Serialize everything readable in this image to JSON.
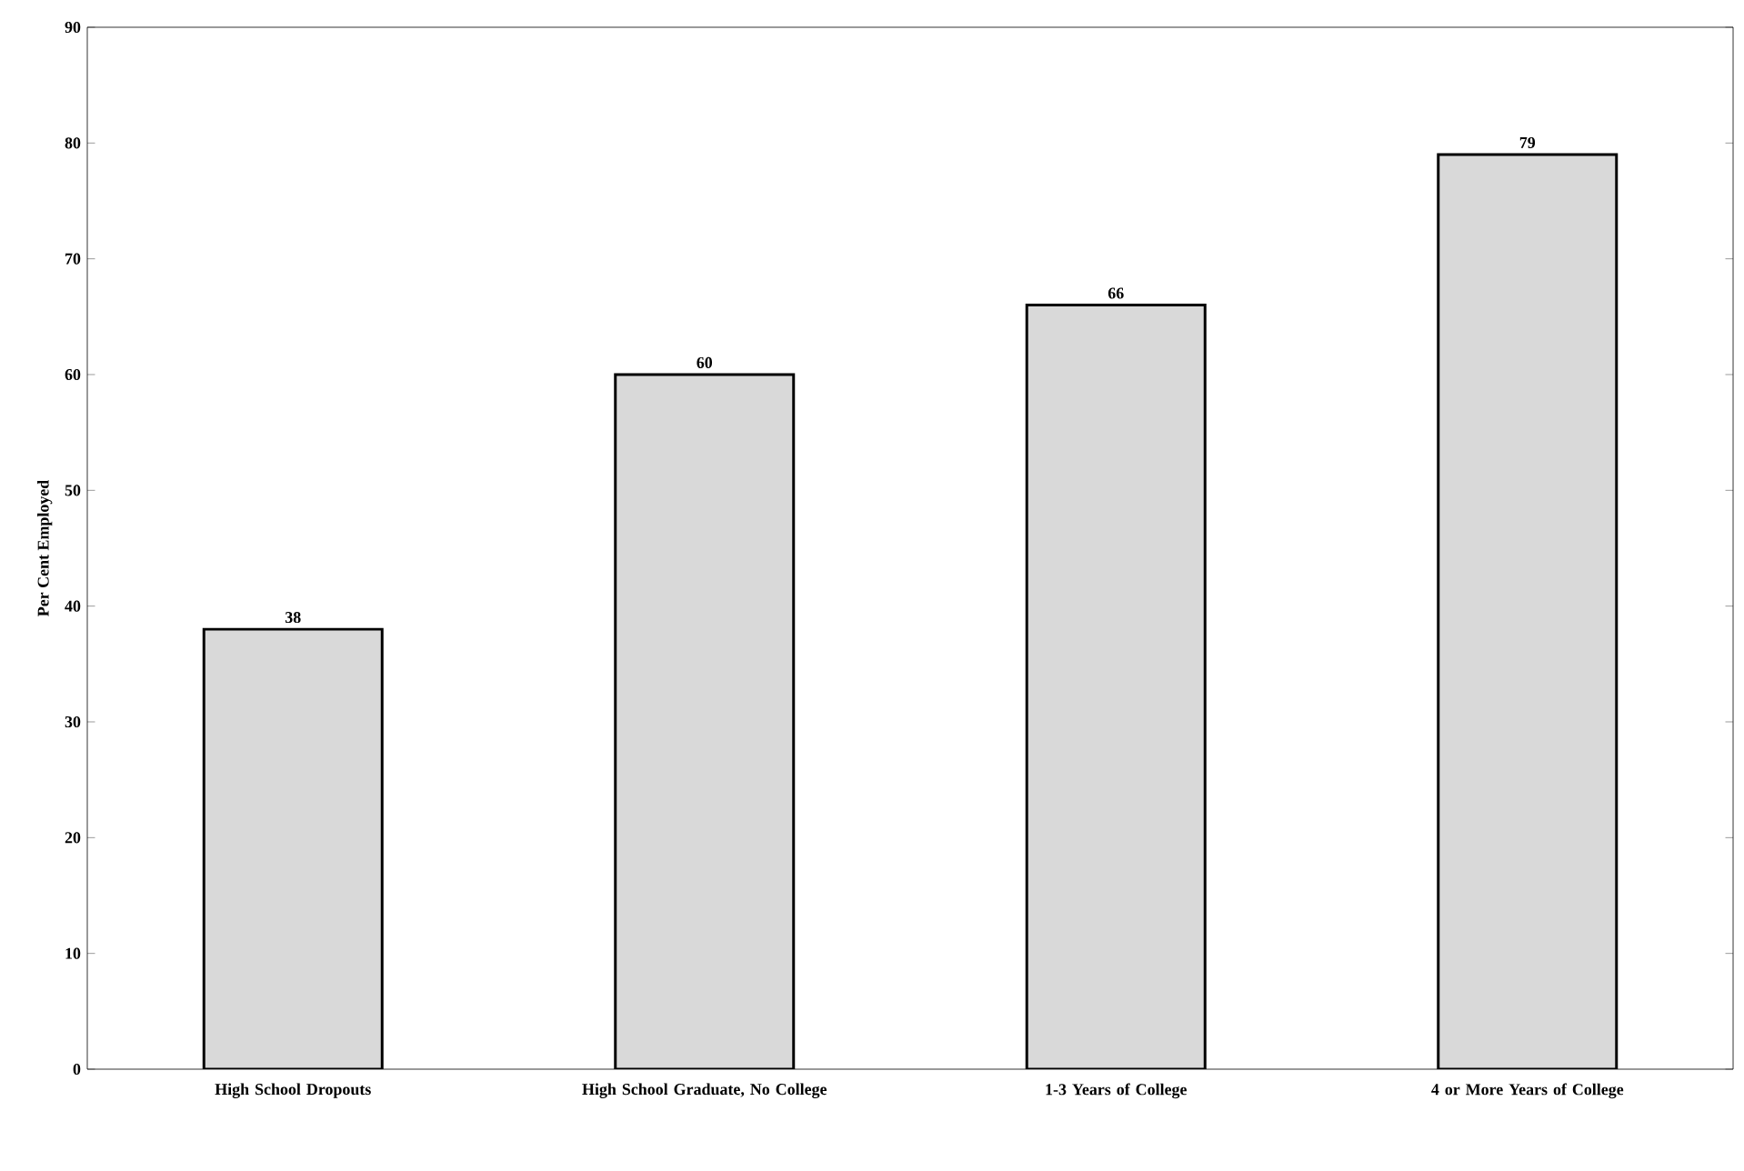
{
  "chart_data": {
    "type": "bar",
    "ylabel": "Per Cent Employed",
    "categories": [
      "High School Dropouts",
      "High School Graduate, No College",
      "1-3 Years of College",
      "4 or More Years of College"
    ],
    "values": [
      38,
      60,
      66,
      79
    ],
    "color": "#d9d9d9",
    "ylim": [
      0,
      90
    ],
    "yticks": [
      0,
      10,
      20,
      30,
      40,
      50,
      60,
      70,
      80,
      90
    ],
    "grid": false,
    "data_labels": true
  }
}
